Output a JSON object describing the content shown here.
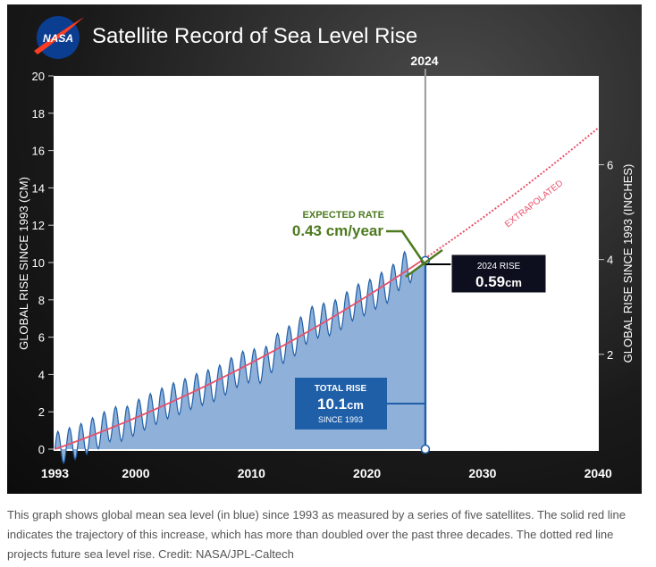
{
  "chart_data": {
    "type": "area",
    "title": "Satellite Record of Sea Level Rise",
    "ylabel": "GLOBAL RISE SINCE 1993 (CM)",
    "ylabel_right": "GLOBAL RISE SINCE 1993 (INCHES)",
    "xlim": [
      1993,
      2040
    ],
    "ylim": [
      0,
      20
    ],
    "x_ticks": [
      "1993",
      "2000",
      "2010",
      "2020",
      "2030",
      "2040"
    ],
    "y_ticks": [
      "0",
      "2",
      "4",
      "6",
      "8",
      "10",
      "12",
      "14",
      "16",
      "18",
      "20"
    ],
    "y_right_ticks": [
      "2",
      "4",
      "6"
    ],
    "observed_years": [
      1993,
      1994,
      1995,
      1996,
      1997,
      1998,
      1999,
      2000,
      2001,
      2002,
      2003,
      2004,
      2005,
      2006,
      2007,
      2008,
      2009,
      2010,
      2011,
      2012,
      2013,
      2014,
      2015,
      2016,
      2017,
      2018,
      2019,
      2020,
      2021,
      2022,
      2023,
      2024
    ],
    "observed_annual_mean_cm": [
      0,
      0.2,
      0.4,
      0.7,
      1.0,
      1.4,
      1.3,
      1.7,
      2.0,
      2.3,
      2.6,
      2.8,
      3.1,
      3.3,
      3.5,
      3.9,
      4.3,
      4.5,
      4.4,
      5.2,
      5.6,
      6.0,
      6.7,
      6.9,
      7.0,
      7.4,
      7.9,
      8.1,
      8.5,
      8.8,
      9.6,
      9.9
    ],
    "seasonal_amplitude_cm": 0.9,
    "trend": {
      "label": "EXTRAPOLATED",
      "linear_cm_per_yr": 0.219,
      "quadratic_cm_per_yr2": 0.00313,
      "extrapolated_to": 2040
    },
    "colors": {
      "observed_fill": "#8fb0d8",
      "observed_line": "#1f5fa8",
      "trend": "#e8506a",
      "rate": "#4d7a1f",
      "marker": "#1f5fa8"
    },
    "marker_year": "2024",
    "annotations": {
      "expected_rate_label": "EXPECTED RATE",
      "expected_rate_value": "0.43 cm/year",
      "rise_2024_label": "2024 RISE",
      "rise_2024_value": "0.59",
      "rise_2024_unit": "cm",
      "total_rise_label": "TOTAL RISE",
      "total_rise_value": "10.1",
      "total_rise_unit": "cm",
      "total_rise_since": "SINCE 1993"
    }
  },
  "logo": "NASA",
  "caption": "This graph shows global mean sea level (in blue) since 1993 as measured by a series of five satellites. The solid red line indicates the trajectory of this increase, which has more than doubled over the past three decades. The dotted red line projects future sea level rise. Credit: NASA/JPL-Caltech"
}
